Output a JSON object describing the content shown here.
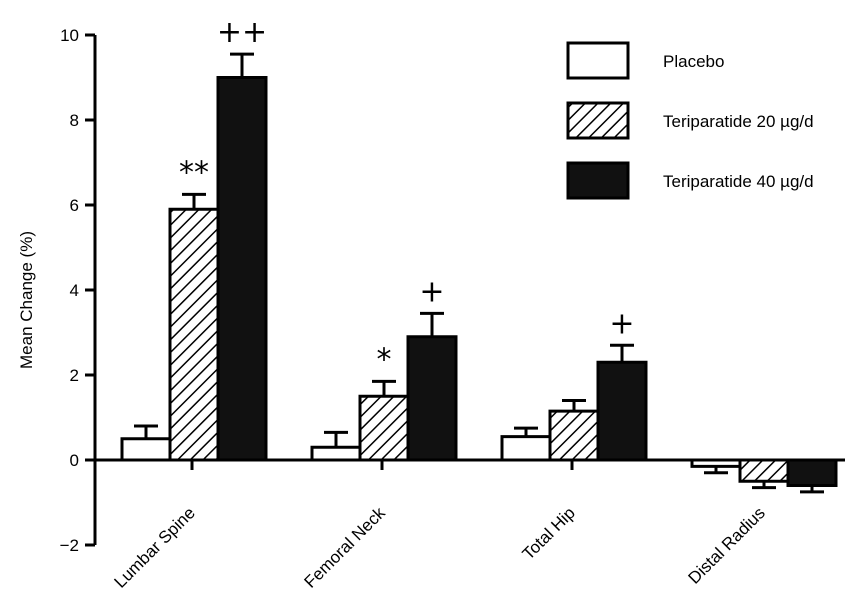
{
  "chart_data": {
    "type": "bar",
    "title": "",
    "xlabel": "",
    "ylabel": "Mean Change (%)",
    "ylim": [
      -2,
      10
    ],
    "yticks": [
      -2,
      0,
      2,
      4,
      6,
      8,
      10
    ],
    "ytick_labels": [
      "−2",
      "0",
      "2",
      "4",
      "6",
      "8",
      "10"
    ],
    "categories": [
      "Lumbar Spine",
      "Femoral Neck",
      "Total Hip",
      "Distal Radius"
    ],
    "series": [
      {
        "name": "Placebo",
        "fill": "open",
        "values": [
          0.5,
          0.3,
          0.55,
          -0.15
        ],
        "errors": [
          0.3,
          0.35,
          0.2,
          0.15
        ]
      },
      {
        "name": "Teriparatide 20 µg/d",
        "fill": "hatched",
        "values": [
          5.9,
          1.5,
          1.15,
          -0.5
        ],
        "errors": [
          0.35,
          0.35,
          0.25,
          0.15
        ]
      },
      {
        "name": "Teriparatide 40 µg/d",
        "fill": "solid",
        "values": [
          9.0,
          2.9,
          2.3,
          -0.6
        ],
        "errors": [
          0.55,
          0.55,
          0.4,
          0.15
        ]
      }
    ],
    "annotations": [
      {
        "text": "**",
        "category": 0,
        "series": 1
      },
      {
        "text": "++",
        "category": 0,
        "series": 2
      },
      {
        "text": "*",
        "category": 1,
        "series": 1
      },
      {
        "text": "+",
        "category": 1,
        "series": 2
      },
      {
        "text": "+",
        "category": 2,
        "series": 2
      }
    ],
    "grid": false,
    "legend_position": "top-right",
    "colors": {
      "bar_edge": "#000000",
      "solid_fill": "#111111",
      "open_fill": "#ffffff"
    }
  }
}
